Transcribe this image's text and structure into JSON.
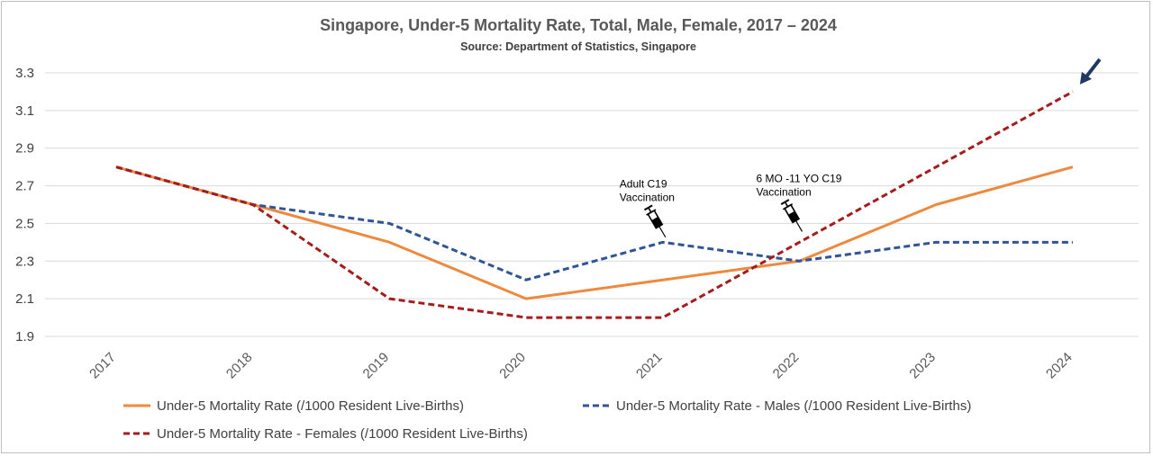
{
  "chart_data": {
    "type": "line",
    "title": "Singapore, Under-5 Mortality Rate, Total, Male, Female, 2017 – 2024",
    "subtitle": "Source: Department of Statistics, Singapore",
    "categories": [
      "2017",
      "2018",
      "2019",
      "2020",
      "2021",
      "2022",
      "2023",
      "2024"
    ],
    "ylim": [
      1.9,
      3.3
    ],
    "yticks": [
      "1.9",
      "2.1",
      "2.3",
      "2.5",
      "2.7",
      "2.9",
      "3.1",
      "3.3"
    ],
    "grid": true,
    "legend_position": "bottom",
    "series": [
      {
        "name": "Under-5 Mortality Rate (/1000 Resident Live-Births)",
        "values": [
          2.8,
          2.6,
          2.4,
          2.1,
          2.2,
          2.3,
          2.6,
          2.8
        ],
        "color": "#ed8a3f",
        "style": "solid"
      },
      {
        "name": "Under-5 Mortality Rate - Males (/1000 Resident Live-Births)",
        "values": [
          2.8,
          2.6,
          2.5,
          2.2,
          2.4,
          2.3,
          2.4,
          2.4
        ],
        "color": "#2f5597",
        "style": "dashed"
      },
      {
        "name": "Under-5 Mortality Rate - Females (/1000 Resident Live-Births)",
        "values": [
          2.8,
          2.6,
          2.1,
          2.0,
          2.0,
          2.4,
          2.8,
          3.2
        ],
        "color": "#a51c1c",
        "style": "dashed"
      }
    ],
    "annotations": [
      {
        "line1": "Adult C19",
        "line2": "Vaccination",
        "icon": "syringe-icon",
        "x": "2021",
        "y": 2.47
      },
      {
        "line1": "6 MO -11 YO C19",
        "line2": "Vaccination",
        "icon": "syringe-icon",
        "x": "2022",
        "y": 2.5
      }
    ],
    "arrow": {
      "icon": "arrow-icon",
      "color": "#1f3864",
      "x": "2024",
      "y": 3.2
    }
  }
}
